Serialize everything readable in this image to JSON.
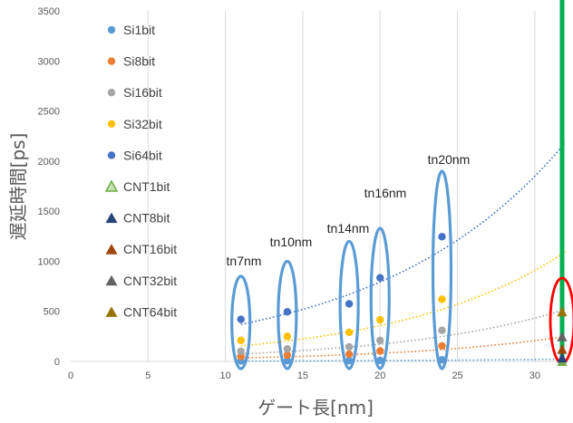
{
  "chart_data": {
    "type": "scatter",
    "xlabel": "ゲート長[nm]",
    "ylabel": "遅延時間[ps]",
    "xlim": [
      0,
      32
    ],
    "ylim": [
      0,
      3500
    ],
    "x_ticks": [
      0,
      5,
      10,
      15,
      20,
      25,
      30
    ],
    "y_ticks": [
      0,
      500,
      1000,
      1500,
      2000,
      2500,
      3000,
      3500
    ],
    "grid": "vertical gridlines on",
    "legend_position": "upper-left inside plot",
    "series": [
      {
        "name": "Si1bit",
        "marker": "circle",
        "color": "#5B9BD5",
        "x": [
          11,
          14,
          18,
          20,
          24
        ],
        "y": [
          5,
          6,
          8,
          10,
          16
        ]
      },
      {
        "name": "Si8bit",
        "marker": "circle",
        "color": "#ED7D31",
        "x": [
          11,
          14,
          18,
          20,
          24
        ],
        "y": [
          50,
          62,
          72,
          104,
          155
        ]
      },
      {
        "name": "Si16bit",
        "marker": "circle",
        "color": "#A5A5A5",
        "x": [
          11,
          14,
          18,
          20,
          24
        ],
        "y": [
          100,
          125,
          145,
          210,
          310
        ]
      },
      {
        "name": "Si32bit",
        "marker": "circle",
        "color": "#FFC000",
        "x": [
          11,
          14,
          18,
          20,
          24
        ],
        "y": [
          210,
          250,
          290,
          415,
          620
        ]
      },
      {
        "name": "Si64bit",
        "marker": "circle",
        "color": "#4472C4",
        "x": [
          11,
          14,
          18,
          20,
          24
        ],
        "y": [
          420,
          495,
          575,
          835,
          1245
        ]
      },
      {
        "name": "CNT1bit",
        "marker": "triangle",
        "color": "#70AD47",
        "x": [
          32
        ],
        "y": [
          4
        ]
      },
      {
        "name": "CNT8bit",
        "marker": "triangle",
        "color": "#264478",
        "x": [
          32
        ],
        "y": [
          40
        ]
      },
      {
        "name": "CNT16bit",
        "marker": "triangle",
        "color": "#9E480E",
        "x": [
          32
        ],
        "y": [
          125
        ]
      },
      {
        "name": "CNT32bit",
        "marker": "triangle",
        "color": "#636363",
        "x": [
          32
        ],
        "y": [
          250
        ]
      },
      {
        "name": "CNT64bit",
        "marker": "triangle",
        "color": "#997300",
        "x": [
          32
        ],
        "y": [
          500
        ]
      }
    ],
    "trendlines": [
      {
        "series": "Si1bit",
        "type": "exponential",
        "color": "#5B9BD5",
        "x": [
          11,
          32
        ],
        "y_start": 4,
        "y_end": 23
      },
      {
        "series": "Si8bit",
        "type": "exponential",
        "color": "#ED7D31",
        "x": [
          11,
          32
        ],
        "y_start": 35,
        "y_end": 250
      },
      {
        "series": "Si16bit",
        "type": "exponential",
        "color": "#A5A5A5",
        "x": [
          11,
          32
        ],
        "y_start": 75,
        "y_end": 520
      },
      {
        "series": "Si32bit",
        "type": "exponential",
        "color": "#FFC000",
        "x": [
          11,
          32
        ],
        "y_start": 155,
        "y_end": 1095
      },
      {
        "series": "Si64bit",
        "type": "exponential",
        "color": "#4472C4",
        "x": [
          11,
          32
        ],
        "y_start": 370,
        "y_end": 2190
      }
    ],
    "annotations": [
      {
        "label": "tn7nm",
        "x": 11,
        "ellipse_y_top": 850
      },
      {
        "label": "tn10nm",
        "x": 14,
        "ellipse_y_top": 1000
      },
      {
        "label": "tn14nm",
        "x": 18,
        "ellipse_y_top": 1200
      },
      {
        "label": "tn16nm",
        "x": 20,
        "ellipse_y_top": 1330
      },
      {
        "label": "tn20nm",
        "x": 24,
        "ellipse_y_top": 1900
      }
    ],
    "reference_line": {
      "x": 32,
      "color": "#00B050"
    },
    "highlight_ellipse": {
      "x": 32,
      "color": "#FF0000"
    },
    "colors": {
      "ellipse": "#5B9BD5",
      "grid": "#D9D9D9"
    }
  }
}
